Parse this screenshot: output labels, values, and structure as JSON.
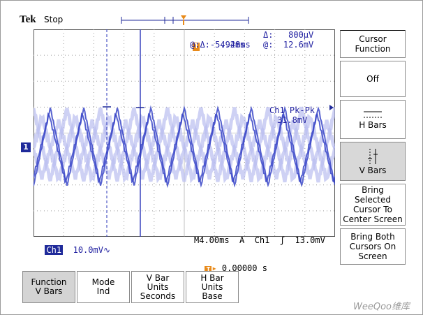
{
  "brand": "Tek",
  "run_state": "Stop",
  "readouts": {
    "delta_time": "Δ:  4.48ms",
    "delta_volt": "Δ:   800μV",
    "at_time": "@:  -5.92ms",
    "at_volt": "@:  12.6mV",
    "measure_name": "Ch1 Pk-Pk",
    "measure_value": "31.8mV",
    "ch1_label": "Ch1",
    "ch1_scale": "10.0mV∿",
    "timebase": "M4.00ms  A  Ch1  ʃ  13.0mV",
    "trigger_offset": "0.00000 s",
    "trigger_glyph": "T",
    "ch1_marker": "1"
  },
  "side_menu": {
    "title_line1": "Cursor",
    "title_line2": "Function",
    "off": "Off",
    "hbars": "H Bars",
    "vbars": "V Bars",
    "bring_selected_1": "Bring",
    "bring_selected_2": "Selected",
    "bring_selected_3": "Cursor To",
    "bring_selected_4": "Center Screen",
    "bring_both_1": "Bring Both",
    "bring_both_2": "Cursors On",
    "bring_both_3": "Screen"
  },
  "bottom_menu": {
    "function_1": "Function",
    "function_2": "V Bars",
    "mode_1": "Mode",
    "mode_2": "Ind",
    "vbar_units_1": "V Bar",
    "vbar_units_2": "Units",
    "vbar_units_3": "Seconds",
    "hbar_units_1": "H Bar",
    "hbar_units_2": "Units",
    "hbar_units_3": "Base"
  },
  "watermark": "WeeQoo维库",
  "colors": {
    "trace": "#3a46c8",
    "trace_ghost": "#b9bdf0",
    "grid": "#9a9a9a",
    "readout": "#1f1fa0",
    "trigger": "#e88a1a"
  }
}
